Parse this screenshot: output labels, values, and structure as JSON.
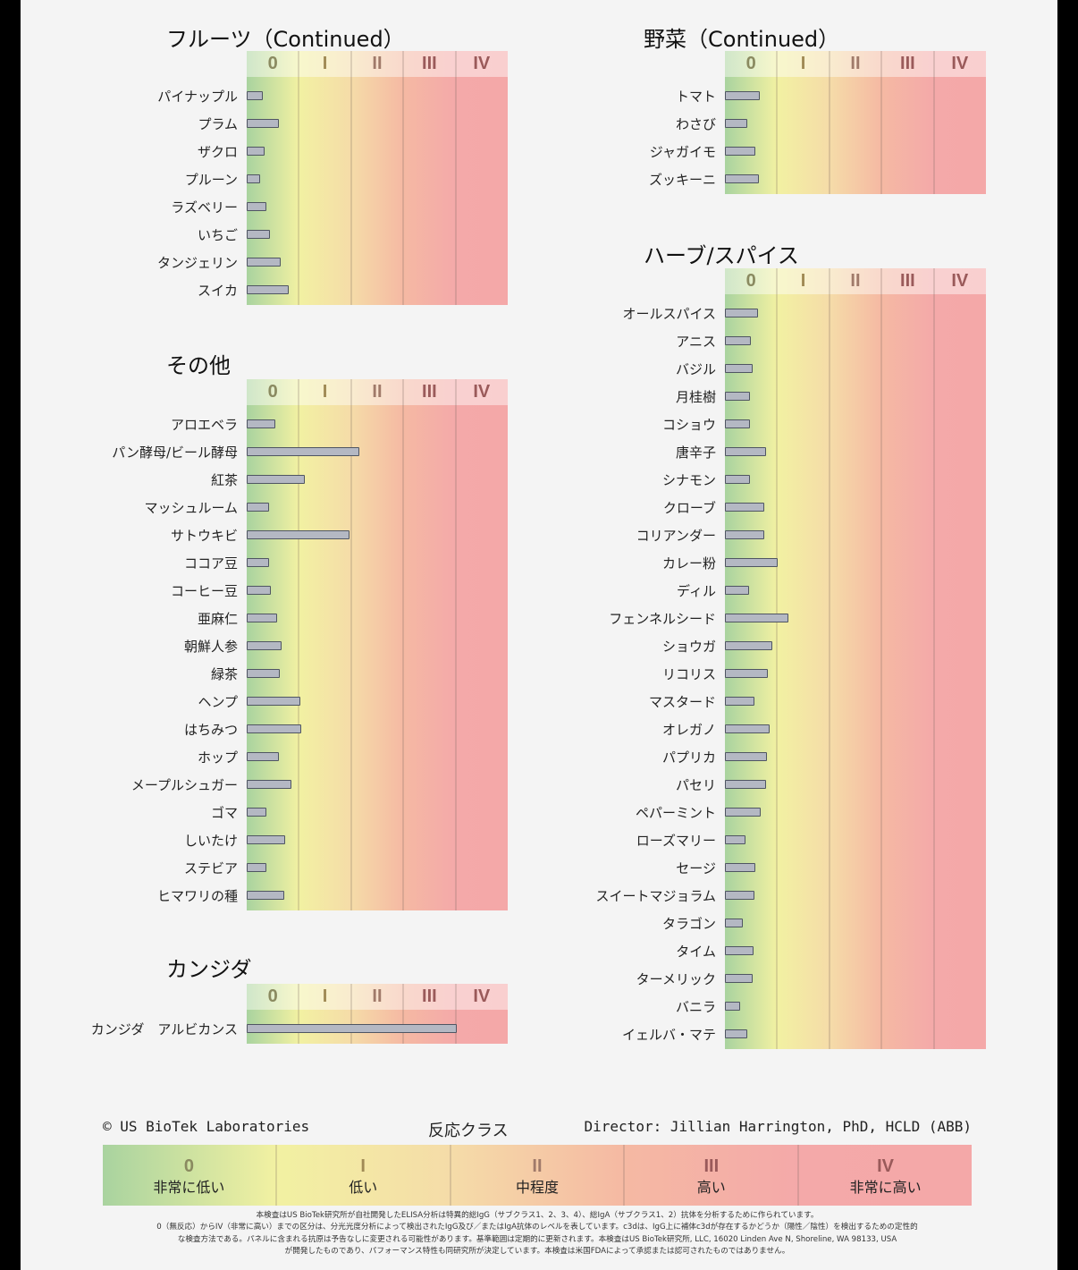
{
  "chart_data": [
    {
      "type": "bar",
      "orientation": "horizontal",
      "title": "フルーツ（Continued）",
      "column": "left",
      "class_labels": [
        "0",
        "I",
        "II",
        "III",
        "IV"
      ],
      "xlim": [
        0,
        5
      ],
      "categories": [
        "パイナップル",
        "プラム",
        "ザクロ",
        "プルーン",
        "ラズベリー",
        "いちご",
        "タンジェリン",
        "スイカ"
      ],
      "values": [
        0.31,
        0.62,
        0.34,
        0.26,
        0.38,
        0.44,
        0.65,
        0.8
      ]
    },
    {
      "type": "bar",
      "orientation": "horizontal",
      "title": "その他",
      "column": "left",
      "class_labels": [
        "0",
        "I",
        "II",
        "III",
        "IV"
      ],
      "xlim": [
        0,
        5
      ],
      "categories": [
        "アロエベラ",
        "パン酵母/ビール酵母",
        "紅茶",
        "マッシュルーム",
        "サトウキビ",
        "ココア豆",
        "コーヒー豆",
        "亜麻仁",
        "朝鮮人参",
        "緑茶",
        "ヘンプ",
        "はちみつ",
        "ホップ",
        "メープルシュガー",
        "ゴマ",
        "しいたけ",
        "ステビア",
        "ヒマワリの種"
      ],
      "values": [
        0.55,
        2.15,
        1.11,
        0.43,
        1.97,
        0.43,
        0.46,
        0.58,
        0.67,
        0.63,
        1.03,
        1.04,
        0.62,
        0.85,
        0.38,
        0.73,
        0.38,
        0.72
      ]
    },
    {
      "type": "bar",
      "orientation": "horizontal",
      "title": "カンジダ",
      "column": "left",
      "class_labels": [
        "0",
        "I",
        "II",
        "III",
        "IV"
      ],
      "xlim": [
        0,
        5
      ],
      "categories": [
        "カンジダ　アルビカンス"
      ],
      "values": [
        4.02
      ]
    },
    {
      "type": "bar",
      "orientation": "horizontal",
      "title": "野菜（Continued）",
      "column": "right",
      "class_labels": [
        "0",
        "I",
        "II",
        "III",
        "IV"
      ],
      "xlim": [
        0,
        5
      ],
      "categories": [
        "トマト",
        "わさび",
        "ジャガイモ",
        "ズッキーニ"
      ],
      "values": [
        0.67,
        0.43,
        0.58,
        0.65
      ]
    },
    {
      "type": "bar",
      "orientation": "horizontal",
      "title": "ハーブ/スパイス",
      "column": "right",
      "class_labels": [
        "0",
        "I",
        "II",
        "III",
        "IV"
      ],
      "xlim": [
        0,
        5
      ],
      "categories": [
        "オールスパイス",
        "アニス",
        "バジル",
        "月桂樹",
        "コショウ",
        "唐辛子",
        "シナモン",
        "クローブ",
        "コリアンダー",
        "カレー粉",
        "ディル",
        "フェンネルシード",
        "ショウガ",
        "リコリス",
        "マスタード",
        "オレガノ",
        "パプリカ",
        "パセリ",
        "ペパーミント",
        "ローズマリー",
        "セージ",
        "スイートマジョラム",
        "タラゴン",
        "タイム",
        "ターメリック",
        "バニラ",
        "イェルバ・マテ"
      ],
      "values": [
        0.63,
        0.5,
        0.53,
        0.48,
        0.48,
        0.79,
        0.48,
        0.75,
        0.75,
        1.01,
        0.46,
        1.21,
        0.91,
        0.82,
        0.56,
        0.85,
        0.8,
        0.79,
        0.68,
        0.39,
        0.58,
        0.56,
        0.34,
        0.55,
        0.53,
        0.29,
        0.43
      ]
    }
  ],
  "class_label_colors": [
    "#8a8a60",
    "#a08a55",
    "#a07a6a",
    "#9a5a5a",
    "#9a5a5a"
  ],
  "footer": {
    "copyright": "© US BioTek Laboratories",
    "legend_title": "反応クラス",
    "director": "Director: Jillian Harrington, PhD, HCLD (ABB)"
  },
  "legend": [
    {
      "roman": "0",
      "text": "非常に低い"
    },
    {
      "roman": "I",
      "text": "低い"
    },
    {
      "roman": "II",
      "text": "中程度"
    },
    {
      "roman": "III",
      "text": "高い"
    },
    {
      "roman": "IV",
      "text": "非常に高い"
    }
  ],
  "disclaimer": [
    "本検査はUS BioTek研究所が自社開発したELISA分析は特異的総IgG（サブクラス1、2、3、4）、総IgA（サブクラス1、2）抗体を分析するために作られています。",
    "0（無反応）からIV（非常に高い）までの区分は、分光光度分析によって検出されたIgG及び／またはIgA抗体のレベルを表しています。c3dは、IgG上に補体c3dが存在するかどうか（陽性／陰性）を検出するための定性的",
    "な検査方法である。パネルに含まれる抗原は予告なしに変更される可能性があります。基準範囲は定期的に更新されます。本検査はUS BioTek研究所, LLC, 16020 Linden Ave N, Shoreline, WA 98133, USA",
    "が開発したものであり、パフォーマンス特性も同研究所が決定しています。本検査は米国FDAによって承認または認可されたものではありません。"
  ]
}
